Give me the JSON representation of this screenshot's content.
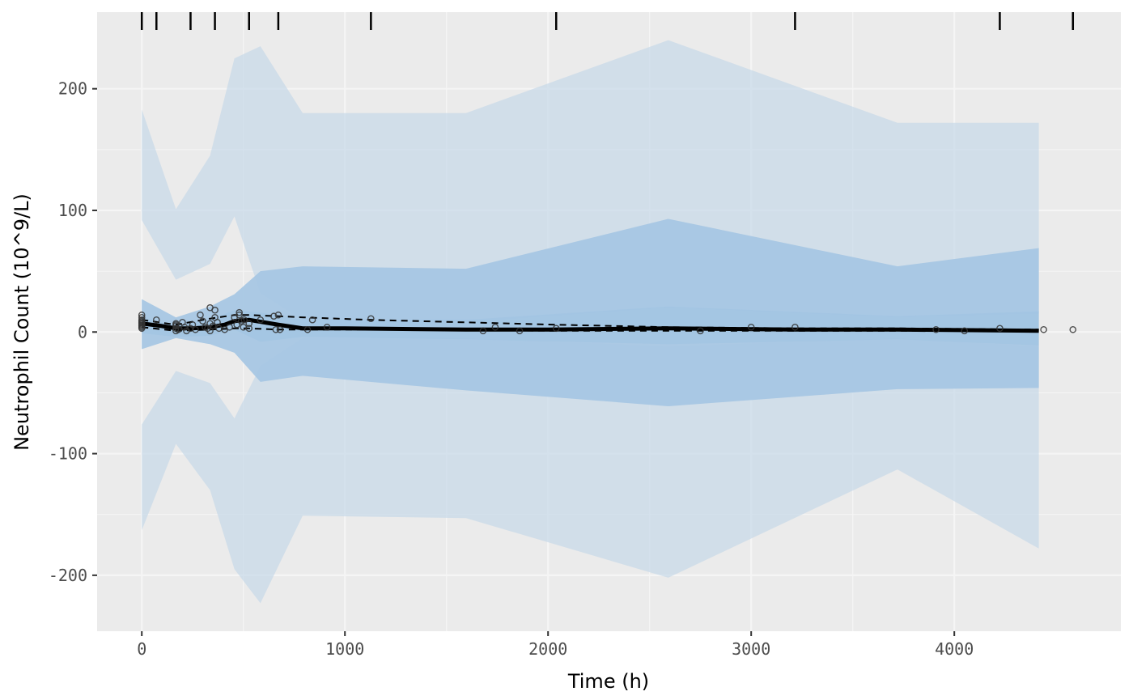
{
  "chart_data": {
    "type": "line",
    "title": "",
    "xlabel": "Time (h)",
    "ylabel": "Neutrophil Count (10^9/L)",
    "xlim": [
      -220,
      4820
    ],
    "ylim": [
      -246,
      263
    ],
    "x_ticks": [
      0,
      1000,
      2000,
      3000,
      4000
    ],
    "x_tick_labels": [
      "0",
      "1000",
      "2000",
      "3000",
      "4000"
    ],
    "y_ticks": [
      -200,
      -100,
      0,
      100,
      200
    ],
    "y_tick_labels": [
      "-200",
      "-100",
      "0",
      "100",
      "200"
    ],
    "grid": true,
    "legend": "none",
    "colors": {
      "panel": "#ebebeb",
      "grid": "#f5f5f5",
      "outer_band": "#c6d8e8",
      "inner_band": "#9ec2e1",
      "line": "#000000"
    },
    "bin_edges": [
      0,
      72,
      240,
      360,
      528,
      672,
      1128,
      2040,
      3216,
      4224,
      4584
    ],
    "bands": [
      {
        "name": "outer_pi_upper",
        "x": [
          0,
          168,
          336,
          456,
          584,
          792,
          1596,
          2592,
          3720,
          4416
        ],
        "lower": [
          92,
          43,
          56,
          95,
          32,
          10,
          8,
          20,
          12,
          15
        ],
        "upper": [
          183,
          101,
          145,
          225,
          235,
          180,
          180,
          240,
          172,
          172
        ]
      },
      {
        "name": "outer_pi_median",
        "x": [
          0,
          168,
          336,
          456,
          584,
          792,
          1596,
          2592,
          3720,
          4416
        ],
        "lower": [
          -14,
          -5,
          -10,
          -17,
          -41,
          -36,
          -48,
          -61,
          -47,
          -46
        ],
        "upper": [
          27,
          12,
          21,
          31,
          50,
          54,
          52,
          93,
          54,
          69
        ]
      },
      {
        "name": "outer_pi_lower",
        "x": [
          0,
          168,
          336,
          456,
          584,
          792,
          1596,
          2592,
          3720,
          4416
        ],
        "lower": [
          -163,
          -92,
          -130,
          -195,
          -223,
          -151,
          -153,
          -202,
          -113,
          -178
        ],
        "upper": [
          -76,
          -32,
          -42,
          -71,
          -28,
          -5,
          -5,
          -12,
          -5,
          -12
        ]
      },
      {
        "name": "inner_pi_median",
        "x": [
          0,
          168,
          336,
          456,
          584,
          792,
          1596,
          2592,
          3720,
          4416
        ],
        "lower": [
          -14,
          -5,
          -10,
          -17,
          -41,
          -36,
          -48,
          -61,
          -47,
          -46
        ],
        "upper": [
          27,
          12,
          21,
          31,
          50,
          54,
          52,
          93,
          54,
          69
        ]
      }
    ],
    "inner_center": {
      "x": [
        0,
        168,
        336,
        456,
        584,
        792,
        1596,
        2592,
        3720,
        4416
      ],
      "lower": [
        -1,
        -4,
        -3,
        2,
        -8,
        -4,
        -6,
        -10,
        -6,
        -11
      ],
      "upper": [
        12,
        5,
        10,
        18,
        16,
        10,
        10,
        21,
        13,
        17
      ]
    },
    "series": [
      {
        "name": "",
        "style": "solid",
        "x": [
          0,
          96,
          168,
          250,
          336,
          408,
          456,
          528,
          600,
          672,
          792,
          1000,
          1596,
          2000,
          2592,
          3216,
          3720,
          4416
        ],
        "values": [
          7,
          5,
          3,
          3,
          4,
          6,
          9,
          10,
          8,
          6,
          3,
          3,
          2,
          2,
          3,
          2,
          2,
          1
        ]
      },
      {
        "name": "",
        "style": "dashed",
        "x": [
          0,
          168,
          336,
          456,
          528,
          672,
          800,
          1128,
          2040,
          2592,
          3216,
          3720,
          4416
        ],
        "values": [
          10,
          6,
          11,
          14,
          14,
          13,
          12,
          10,
          6,
          4,
          3,
          3,
          2
        ]
      },
      {
        "name": "",
        "style": "dashed",
        "x": [
          0,
          168,
          336,
          456,
          528,
          672,
          800,
          1128,
          2040,
          2592,
          3216,
          3720,
          4416
        ],
        "values": [
          4,
          1,
          2,
          3,
          3,
          2,
          2,
          2,
          1,
          1,
          1,
          1,
          1
        ]
      }
    ],
    "points": [
      [
        0,
        14
      ],
      [
        0,
        12
      ],
      [
        0,
        10
      ],
      [
        0,
        9
      ],
      [
        0,
        7
      ],
      [
        0,
        6
      ],
      [
        0,
        5
      ],
      [
        0,
        4
      ],
      [
        0,
        3
      ],
      [
        0,
        8
      ],
      [
        72,
        10
      ],
      [
        168,
        7
      ],
      [
        168,
        5
      ],
      [
        168,
        3
      ],
      [
        168,
        1
      ],
      [
        168,
        6
      ],
      [
        180,
        2
      ],
      [
        200,
        8
      ],
      [
        210,
        4
      ],
      [
        220,
        1
      ],
      [
        240,
        3
      ],
      [
        250,
        6
      ],
      [
        264,
        2
      ],
      [
        288,
        14
      ],
      [
        300,
        9
      ],
      [
        312,
        4
      ],
      [
        324,
        3
      ],
      [
        336,
        7
      ],
      [
        336,
        1
      ],
      [
        336,
        20
      ],
      [
        350,
        5
      ],
      [
        360,
        18
      ],
      [
        360,
        12
      ],
      [
        372,
        8
      ],
      [
        380,
        3
      ],
      [
        408,
        2
      ],
      [
        432,
        4
      ],
      [
        456,
        12
      ],
      [
        468,
        6
      ],
      [
        480,
        16
      ],
      [
        480,
        14
      ],
      [
        490,
        9
      ],
      [
        500,
        4
      ],
      [
        504,
        10
      ],
      [
        528,
        7
      ],
      [
        528,
        3
      ],
      [
        584,
        10
      ],
      [
        650,
        13
      ],
      [
        660,
        2
      ],
      [
        672,
        14
      ],
      [
        680,
        2
      ],
      [
        816,
        2
      ],
      [
        840,
        10
      ],
      [
        912,
        4
      ],
      [
        1128,
        11
      ],
      [
        1680,
        1
      ],
      [
        1740,
        4
      ],
      [
        1860,
        1
      ],
      [
        2040,
        3
      ],
      [
        2750,
        1
      ],
      [
        3000,
        4
      ],
      [
        3216,
        4
      ],
      [
        3910,
        2
      ],
      [
        4050,
        1
      ],
      [
        4224,
        3
      ],
      [
        4440,
        2
      ],
      [
        4584,
        2
      ]
    ]
  }
}
